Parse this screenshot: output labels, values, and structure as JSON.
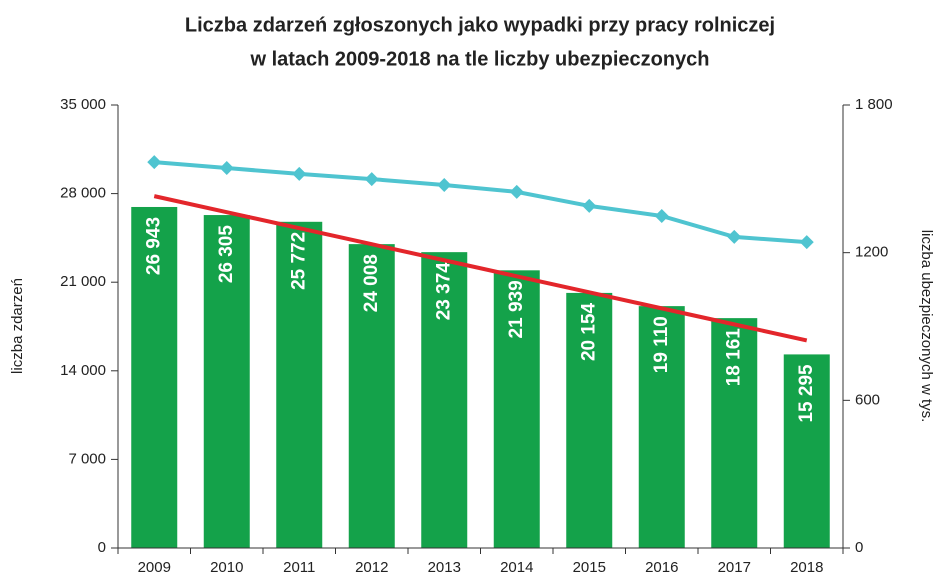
{
  "chart_data": {
    "type": "bar",
    "title": [
      "Liczba zdarzeń zgłoszonych jako wypadki przy pracy rolniczej",
      "w latach 2009-2018 na tle liczby ubezpieczonych"
    ],
    "y_label": "liczba zdarzeń",
    "y2_label": "liczba ubezpieczonych w tys.",
    "categories": [
      "2009",
      "2010",
      "2011",
      "2012",
      "2013",
      "2014",
      "2015",
      "2016",
      "2017",
      "2018"
    ],
    "series": [
      {
        "type": "bar",
        "color": "#14a24a",
        "values": [
          26943,
          26305,
          25772,
          24008,
          23374,
          21939,
          20154,
          19110,
          18161,
          15295
        ],
        "value_labels": [
          "26 943",
          "26 305",
          "25 772",
          "24 008",
          "23 374",
          "21 939",
          "20 154",
          "19 110",
          "18 161",
          "15 295"
        ]
      },
      {
        "type": "line",
        "axis": "y2",
        "color": "#4fc4d0",
        "marker": "diamond",
        "values": [
          1568,
          1544,
          1520,
          1499,
          1475,
          1447,
          1390,
          1349,
          1264,
          1243
        ]
      },
      {
        "type": "line",
        "color": "#e3262b",
        "values": [
          27800,
          26533,
          25267,
          24000,
          22733,
          21467,
          20200,
          18933,
          17667,
          16400
        ]
      }
    ],
    "ylim": [
      0,
      35000
    ],
    "yticks": [
      {
        "value": 0,
        "label": "0"
      },
      {
        "value": 7000,
        "label": "7 000"
      },
      {
        "value": 14000,
        "label": "14 000"
      },
      {
        "value": 21000,
        "label": "21 000"
      },
      {
        "value": 28000,
        "label": "28 000"
      },
      {
        "value": 35000,
        "label": "35 000"
      }
    ],
    "y2lim": [
      0,
      1800
    ],
    "y2ticks": [
      0,
      600,
      1200,
      {
        "value": 1800,
        "label": "1 800"
      }
    ]
  }
}
